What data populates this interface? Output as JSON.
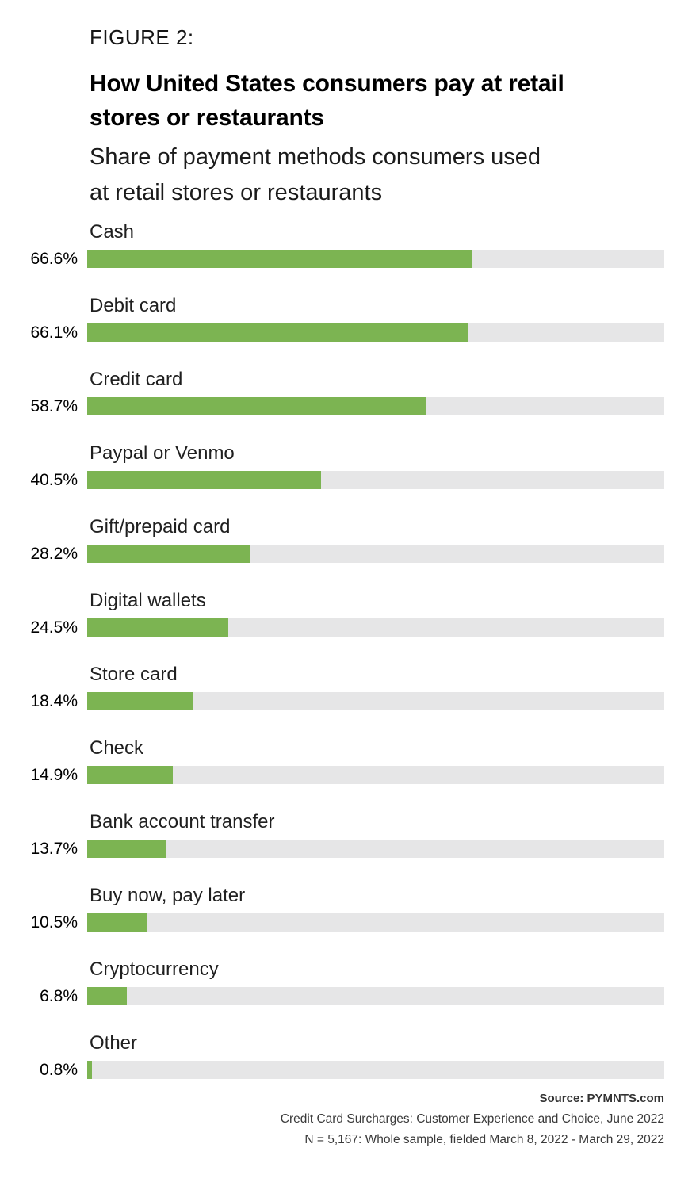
{
  "figure_label": "FIGURE 2:",
  "header": {
    "title_lines": [
      "How United States consumers pay at retail",
      "stores or restaurants"
    ],
    "subtitle_lines": [
      "Share of payment methods consumers used",
      "at retail stores or restaurants"
    ]
  },
  "chart_data": {
    "type": "bar",
    "orientation": "horizontal",
    "title": "How United States consumers pay at retail stores or restaurants",
    "subtitle": "Share of payment methods consumers used at retail stores or restaurants",
    "xlim": [
      0,
      100
    ],
    "unit": "percent",
    "grid": false,
    "legend": false,
    "bar_color": "#7cb452",
    "track_color": "#e6e6e7",
    "categories": [
      "Cash",
      "Debit card",
      "Credit card",
      "Paypal or Venmo",
      "Gift/prepaid card",
      "Digital wallets",
      "Store card",
      "Check",
      "Bank account transfer",
      "Buy now, pay later",
      "Cryptocurrency",
      "Other"
    ],
    "values": [
      66.6,
      66.1,
      58.7,
      40.5,
      28.2,
      24.5,
      18.4,
      14.9,
      13.7,
      10.5,
      6.8,
      0.8
    ],
    "value_labels": [
      "66.6%",
      "66.1%",
      "58.7%",
      "40.5%",
      "28.2%",
      "24.5%",
      "18.4%",
      "14.9%",
      "13.7%",
      "10.5%",
      "6.8%",
      "0.8%"
    ]
  },
  "footer": {
    "source": "Source: PYMNTS.com",
    "study": "Credit Card Surcharges: Customer Experience and Choice, June 2022",
    "sample": "N = 5,167: Whole sample, fielded March 8, 2022 - March 29, 2022"
  }
}
